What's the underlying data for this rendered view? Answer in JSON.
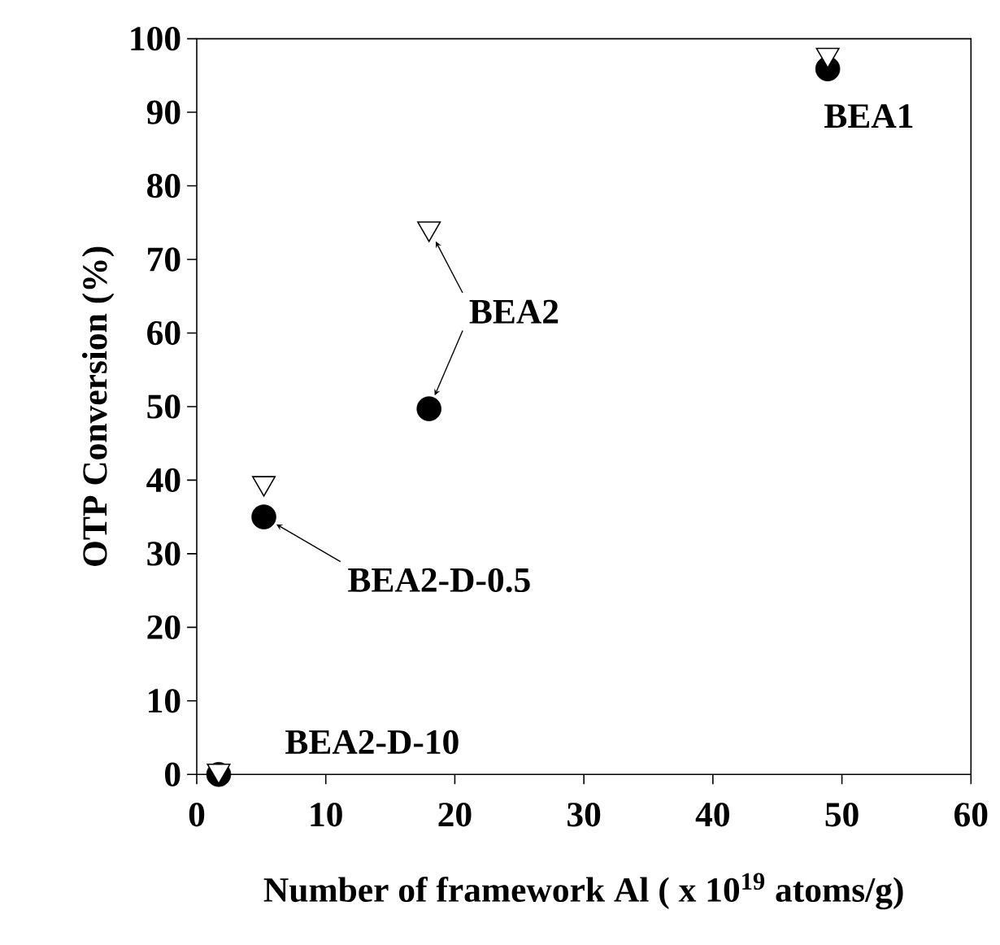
{
  "chart_data": {
    "type": "scatter",
    "xlabel": "Number of framework Al ( x 10$^{19}$ atoms/g)",
    "ylabel": "OTP Conversion (%)",
    "xlim": [
      0,
      60
    ],
    "ylim": [
      0,
      100
    ],
    "xticks": [
      0,
      10,
      20,
      30,
      40,
      50,
      60
    ],
    "yticks": [
      0,
      10,
      20,
      30,
      40,
      50,
      60,
      70,
      80,
      90,
      100
    ],
    "series": [
      {
        "color": "#000000",
        "marker": "circle",
        "x": [
          48.9,
          18.0,
          5.2,
          1.7
        ],
        "values": [
          95.9,
          49.7,
          35.0,
          0
        ]
      },
      {
        "color": "#000000",
        "marker": "triangle",
        "x": [
          48.9,
          18.0,
          5.2,
          1.7
        ],
        "values": [
          97.8,
          74.2,
          39.6,
          0.5
        ]
      }
    ],
    "annotations": [
      {
        "text": "BEA1",
        "x": 48.9,
        "y": 95.9
      },
      {
        "text": "BEA2",
        "x": 18.0,
        "y": 49.7
      },
      {
        "text": "BEA2-D-0.5",
        "x": 5.2,
        "y": 35.0
      },
      {
        "text": "BEA2-D-10",
        "x": 1.7,
        "y": 0
      }
    ]
  }
}
